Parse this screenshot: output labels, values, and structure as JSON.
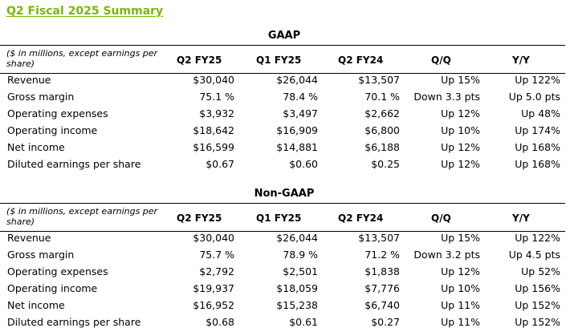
{
  "page_title": "Q2 Fiscal 2025 Summary",
  "sections": [
    {
      "title": "GAAP",
      "note": "($ in millions, except earnings per share)",
      "columns": [
        "Q2 FY25",
        "Q1 FY25",
        "Q2 FY24",
        "Q/Q",
        "Y/Y"
      ],
      "rows": [
        {
          "label": "Revenue",
          "values": [
            "$30,040",
            "$26,044",
            "$13,507",
            "Up 15%",
            "Up 122%"
          ]
        },
        {
          "label": "Gross margin",
          "values": [
            "75.1 %",
            "78.4 %",
            "70.1 %",
            "Down 3.3 pts",
            "Up 5.0 pts"
          ]
        },
        {
          "label": "Operating expenses",
          "values": [
            "$3,932",
            "$3,497",
            "$2,662",
            "Up 12%",
            "Up 48%"
          ]
        },
        {
          "label": "Operating income",
          "values": [
            "$18,642",
            "$16,909",
            "$6,800",
            "Up 10%",
            "Up 174%"
          ]
        },
        {
          "label": "Net income",
          "values": [
            "$16,599",
            "$14,881",
            "$6,188",
            "Up 12%",
            "Up 168%"
          ]
        },
        {
          "label": "Diluted earnings per share",
          "values": [
            "$0.67",
            "$0.60",
            "$0.25",
            "Up 12%",
            "Up 168%"
          ]
        }
      ]
    },
    {
      "title": "Non-GAAP",
      "note": "($ in millions, except earnings per share)",
      "columns": [
        "Q2 FY25",
        "Q1 FY25",
        "Q2 FY24",
        "Q/Q",
        "Y/Y"
      ],
      "rows": [
        {
          "label": "Revenue",
          "values": [
            "$30,040",
            "$26,044",
            "$13,507",
            "Up 15%",
            "Up 122%"
          ]
        },
        {
          "label": "Gross margin",
          "values": [
            "75.7 %",
            "78.9 %",
            "71.2 %",
            "Down 3.2 pts",
            "Up 4.5 pts"
          ]
        },
        {
          "label": "Operating expenses",
          "values": [
            "$2,792",
            "$2,501",
            "$1,838",
            "Up 12%",
            "Up 52%"
          ]
        },
        {
          "label": "Operating income",
          "values": [
            "$19,937",
            "$18,059",
            "$7,776",
            "Up 10%",
            "Up 156%"
          ]
        },
        {
          "label": "Net income",
          "values": [
            "$16,952",
            "$15,238",
            "$6,740",
            "Up 11%",
            "Up 152%"
          ]
        },
        {
          "label": "Diluted earnings per share",
          "values": [
            "$0.68",
            "$0.61",
            "$0.27",
            "Up 11%",
            "Up 152%"
          ]
        }
      ]
    }
  ]
}
